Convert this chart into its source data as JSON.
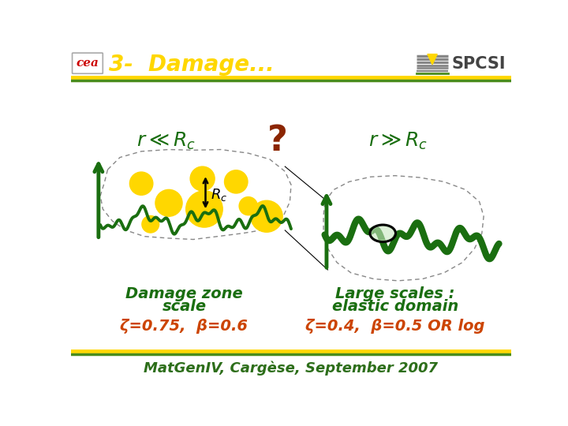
{
  "title": "3-  Damage...",
  "title_color": "#FFD700",
  "bg_color": "#FFFFFF",
  "header_line_yellow": "#FFD700",
  "header_line_green": "#4a8c1c",
  "footer_text": "MatGenIV, Cargèse, September 2007",
  "footer_color": "#2d6e1a",
  "label_question_color": "#8B2500",
  "green": "#1a6e10",
  "yellow": "#FFD700",
  "formula_color": "#cc4400",
  "desc_left_line1": "Damage zone",
  "desc_left_line2": "scale",
  "desc_right_line1": "Large scales :",
  "desc_right_line2": "elastic domain",
  "formula_left": "ζ=0.75,  β=0.6",
  "formula_right": "ζ=0.4,  β=0.5 OR log",
  "spcsi_gray": "#888888",
  "spcsi_yellow": "#FFD700",
  "spcsi_green": "#4a8c1c"
}
